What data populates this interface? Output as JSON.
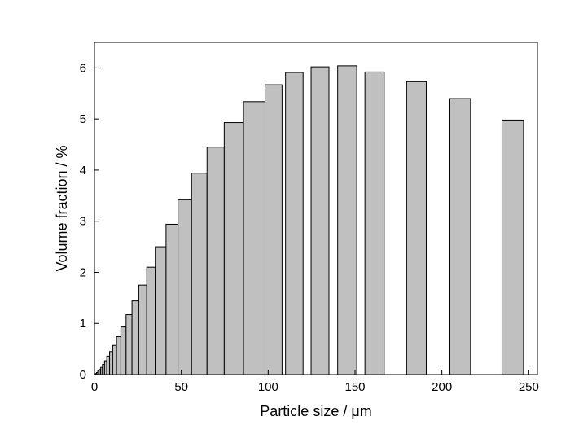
{
  "chart_data": {
    "type": "bar",
    "title": "",
    "xlabel": "Particle size / μm",
    "ylabel": "Volume fraction / %",
    "xlim": [
      0,
      255
    ],
    "ylim": [
      0,
      6.5
    ],
    "xticks": [
      0,
      50,
      100,
      150,
      200,
      250
    ],
    "yticks": [
      0,
      1,
      2,
      3,
      4,
      5,
      6
    ],
    "grid": false,
    "legend": "none",
    "colors": {
      "bar_fill": "#c0c0c0",
      "bar_stroke": "#000000",
      "axis": "#000000"
    },
    "bars": [
      {
        "x0": 0.6,
        "x1": 1.2,
        "value": 0.02
      },
      {
        "x0": 1.2,
        "x1": 1.9,
        "value": 0.04
      },
      {
        "x0": 1.9,
        "x1": 2.7,
        "value": 0.07
      },
      {
        "x0": 2.7,
        "x1": 3.6,
        "value": 0.1
      },
      {
        "x0": 3.6,
        "x1": 4.6,
        "value": 0.14
      },
      {
        "x0": 4.6,
        "x1": 5.8,
        "value": 0.2
      },
      {
        "x0": 5.8,
        "x1": 7.1,
        "value": 0.27
      },
      {
        "x0": 7.1,
        "x1": 8.7,
        "value": 0.36
      },
      {
        "x0": 8.7,
        "x1": 10.5,
        "value": 0.45
      },
      {
        "x0": 10.5,
        "x1": 12.7,
        "value": 0.57
      },
      {
        "x0": 12.7,
        "x1": 15.2,
        "value": 0.74
      },
      {
        "x0": 15.2,
        "x1": 18.2,
        "value": 0.93
      },
      {
        "x0": 18.2,
        "x1": 21.6,
        "value": 1.17
      },
      {
        "x0": 21.6,
        "x1": 25.5,
        "value": 1.44
      },
      {
        "x0": 25.5,
        "x1": 30.1,
        "value": 1.75
      },
      {
        "x0": 30.1,
        "x1": 35.0,
        "value": 2.1
      },
      {
        "x0": 35.0,
        "x1": 41.2,
        "value": 2.5
      },
      {
        "x0": 41.2,
        "x1": 48.1,
        "value": 2.94
      },
      {
        "x0": 48.1,
        "x1": 55.9,
        "value": 3.42
      },
      {
        "x0": 55.9,
        "x1": 64.8,
        "value": 3.94
      },
      {
        "x0": 64.8,
        "x1": 74.7,
        "value": 4.45
      },
      {
        "x0": 74.7,
        "x1": 85.8,
        "value": 4.93
      },
      {
        "x0": 85.8,
        "x1": 98.2,
        "value": 5.34
      },
      {
        "x0": 98.2,
        "x1": 108.0,
        "value": 5.67
      },
      {
        "x0": 110.0,
        "x1": 120.1,
        "value": 5.91
      },
      {
        "x0": 124.7,
        "x1": 135.0,
        "value": 6.02
      },
      {
        "x0": 140.0,
        "x1": 151.0,
        "value": 6.04
      },
      {
        "x0": 155.7,
        "x1": 166.8,
        "value": 5.92
      },
      {
        "x0": 179.7,
        "x1": 191.0,
        "value": 5.73
      },
      {
        "x0": 204.6,
        "x1": 216.5,
        "value": 5.4
      },
      {
        "x0": 234.6,
        "x1": 247.0,
        "value": 4.98
      }
    ]
  }
}
